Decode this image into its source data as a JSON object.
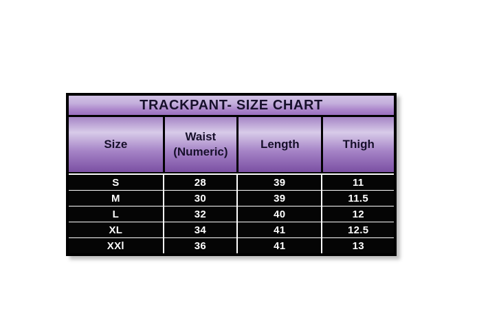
{
  "chart_data": {
    "type": "table",
    "title": "TRACKPANT- SIZE CHART",
    "columns": [
      "Size",
      "Waist (Numeric)",
      "Length",
      "Thigh"
    ],
    "rows": [
      [
        "S",
        "28",
        "39",
        "11"
      ],
      [
        "M",
        "30",
        "39",
        "11.5"
      ],
      [
        "L",
        "32",
        "40",
        "12"
      ],
      [
        "XL",
        "34",
        "41",
        "12.5"
      ],
      [
        "XXl",
        "36",
        "41",
        "13"
      ]
    ]
  },
  "display": {
    "headers": [
      "Size",
      "Waist\n(Numeric)",
      "Length",
      "Thigh"
    ]
  },
  "colors": {
    "outer_border": "#000000",
    "title_gradient_top": "#d2c2e6",
    "title_gradient_bottom": "#9a6fc0",
    "header_gradient_top": "#a585c5",
    "header_gradient_light": "#d8cbe9",
    "header_gradient_bottom": "#7b50a3",
    "header_text": "#17102b",
    "row_background": "#050505",
    "row_text": "#ffffff",
    "grid_line": "#ffffff",
    "page_background": "#ffffff"
  }
}
